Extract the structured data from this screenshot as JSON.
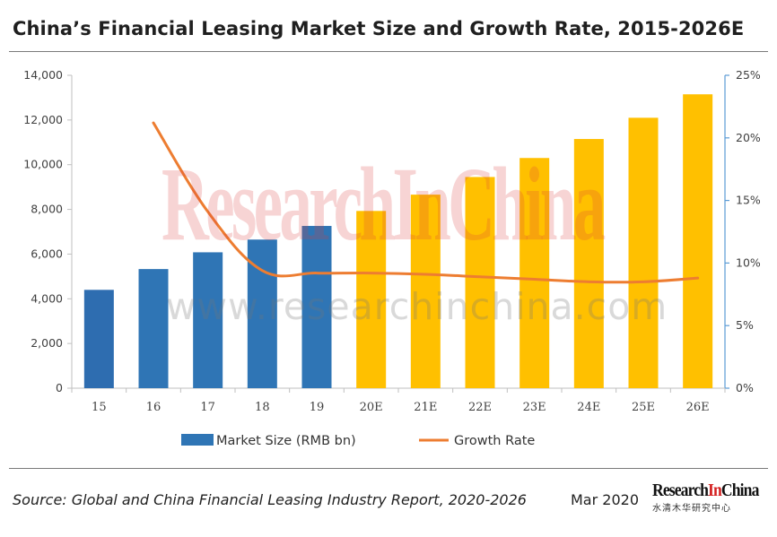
{
  "title": "China’s Financial Leasing Market Size and Growth Rate, 2015-2026E",
  "watermark": {
    "main": "ResearchInChina",
    "url": "www.researchinchina.com"
  },
  "footer": {
    "source": "Source: Global and China Financial Leasing Industry Report, 2020-2026",
    "date": "Mar 2020",
    "logo_prefix": "Research",
    "logo_accent": "In",
    "logo_suffix": "China",
    "logo_sub": "水清木华研究中心"
  },
  "colors": {
    "actual_bar": "#2F75B5",
    "actual_bar_first": "#2E6DB0",
    "forecast_bar": "#FFC000",
    "line": "#ED7D31",
    "axis": "#BFBFBF",
    "right_axis": "#5B9BD5",
    "text": "#404040"
  },
  "chart_data": {
    "type": "bar",
    "categories": [
      "15",
      "16",
      "17",
      "18",
      "19",
      "20E",
      "21E",
      "22E",
      "23E",
      "24E",
      "25E",
      "26E"
    ],
    "series": [
      {
        "name": "Market Size (RMB bn)",
        "kind": "bar",
        "axis": "left",
        "values": [
          4400,
          5330,
          6080,
          6650,
          7260,
          7930,
          8660,
          9450,
          10300,
          11150,
          12100,
          13150
        ],
        "forecast_from_index": 5
      },
      {
        "name": "Growth Rate",
        "kind": "line",
        "axis": "right",
        "values": [
          null,
          21.2,
          14.1,
          9.4,
          9.2,
          9.2,
          9.1,
          8.9,
          8.7,
          8.5,
          8.5,
          8.8
        ]
      }
    ],
    "left_axis": {
      "ylim": [
        0,
        14000
      ],
      "ticks": [
        0,
        2000,
        4000,
        6000,
        8000,
        10000,
        12000,
        14000
      ],
      "tick_labels": [
        "0",
        "2,000",
        "4,000",
        "6,000",
        "8,000",
        "10,000",
        "12,000",
        "14,000"
      ]
    },
    "right_axis": {
      "ylim": [
        0,
        25
      ],
      "ticks": [
        0,
        5,
        10,
        15,
        20,
        25
      ],
      "tick_labels": [
        "0%",
        "5%",
        "10%",
        "15%",
        "20%",
        "25%"
      ]
    },
    "legend_position": "bottom",
    "grid": false
  }
}
